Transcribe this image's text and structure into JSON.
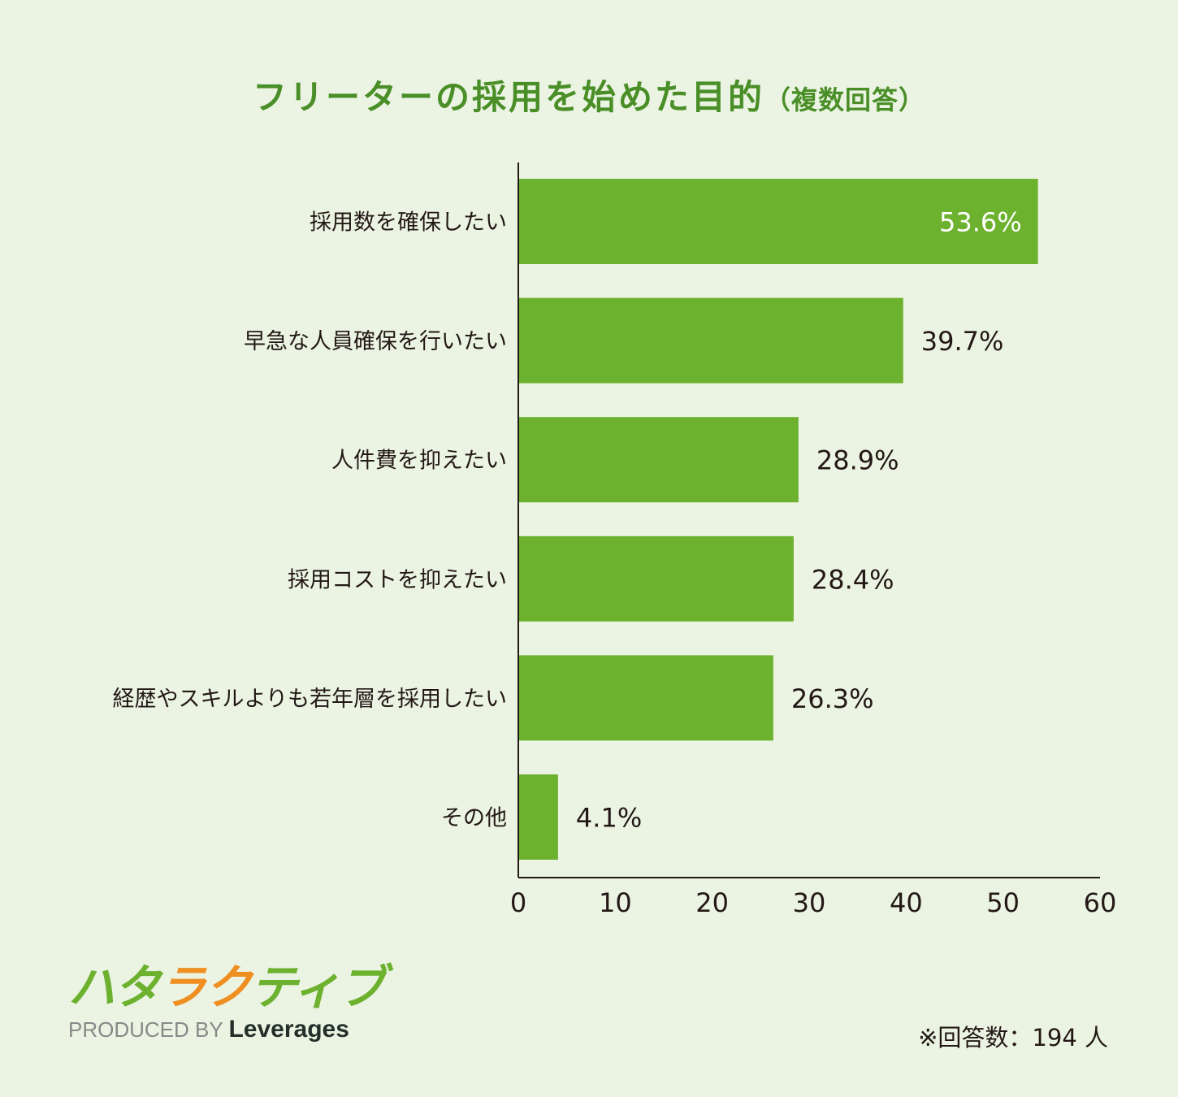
{
  "chart_data": {
    "type": "bar",
    "orientation": "horizontal",
    "title": "フリーターの採用を始めた目的",
    "subtitle": "（複数回答）",
    "categories": [
      "採用数を確保したい",
      "早急な人員確保を行いたい",
      "人件費を抑えたい",
      "採用コストを抑えたい",
      "経歴やスキルよりも若年層を採用したい",
      "その他"
    ],
    "values": [
      53.6,
      39.7,
      28.9,
      28.4,
      26.3,
      4.1
    ],
    "value_labels": [
      "53.6%",
      "39.7%",
      "28.9%",
      "28.4%",
      "26.3%",
      "4.1%"
    ],
    "xlim": [
      0,
      60
    ],
    "xticks": [
      "0",
      "10",
      "20",
      "30",
      "40",
      "50",
      "60"
    ],
    "xlabel": "",
    "ylabel": "",
    "grid": false,
    "colors": {
      "bar": "#6db22f",
      "title": "#4a8e27",
      "background": "#ebf4e3"
    }
  },
  "footer": {
    "logo_text": [
      "ハ",
      "タ",
      "ラ",
      "ク",
      "テ",
      "ィ",
      "ブ"
    ],
    "logo_colors": [
      "#6db22f",
      "#6db22f",
      "#ef8f22",
      "#ef8f22",
      "#6db22f",
      "#6db22f",
      "#6db22f"
    ],
    "produced_by": "PRODUCED BY",
    "company": "Leverages",
    "note": "※回答数：194 人"
  }
}
